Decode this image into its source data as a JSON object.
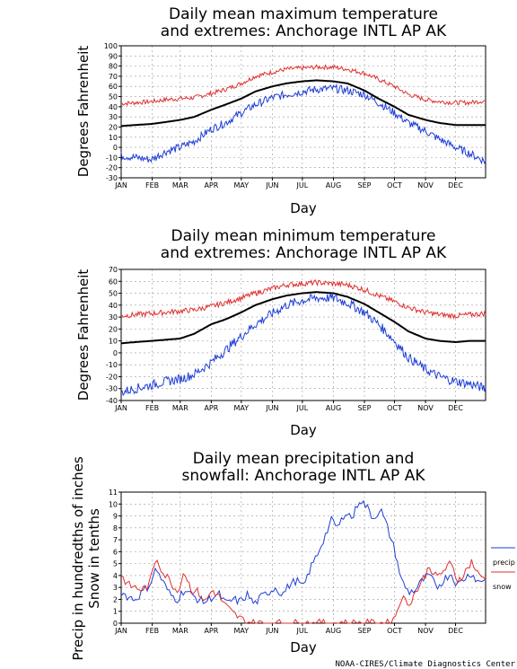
{
  "footer": "NOAA-CIRES/Climate Diagnostics Center",
  "months": [
    "JAN",
    "FEB",
    "MAR",
    "APR",
    "MAY",
    "JUN",
    "JUL",
    "AUG",
    "SEP",
    "OCT",
    "NOV",
    "DEC"
  ],
  "colors": {
    "record": "#e03030",
    "mean": "#000000",
    "low": "#1f3fd6",
    "precip": "#1f3fd6",
    "snow": "#e03030",
    "grid": "#999999"
  },
  "chart_data": [
    {
      "type": "line",
      "title_line1": "Daily mean maximum temperature",
      "title_line2": "and extremes: Anchorage INTL AP AK",
      "xlabel": "Day",
      "ylabel": "Degrees Fahrenheit",
      "ylim": [
        -30,
        100
      ],
      "yticks": [
        -30,
        -20,
        -10,
        0,
        10,
        20,
        30,
        40,
        50,
        60,
        70,
        80,
        90,
        100
      ],
      "grid": true,
      "series": [
        {
          "role": "record",
          "x": [
            1,
            15,
            31,
            46,
            60,
            74,
            91,
            105,
            121,
            135,
            152,
            166,
            182,
            196,
            213,
            227,
            244,
            258,
            274,
            288,
            305,
            319,
            335,
            349,
            365
          ],
          "values": [
            43,
            44,
            45,
            47,
            48,
            49,
            53,
            57,
            63,
            70,
            74,
            77,
            78,
            79,
            79,
            77,
            73,
            67,
            60,
            52,
            47,
            45,
            44,
            44,
            46
          ]
        },
        {
          "role": "mean",
          "x": [
            1,
            15,
            31,
            46,
            60,
            74,
            91,
            105,
            121,
            135,
            152,
            166,
            182,
            196,
            213,
            227,
            244,
            258,
            274,
            288,
            305,
            319,
            335,
            349,
            365
          ],
          "values": [
            21,
            22,
            23,
            25,
            27,
            30,
            37,
            42,
            48,
            55,
            60,
            63,
            65,
            66,
            65,
            63,
            56,
            48,
            40,
            32,
            27,
            24,
            22,
            22,
            22
          ]
        },
        {
          "role": "low",
          "x": [
            1,
            15,
            31,
            46,
            60,
            74,
            91,
            105,
            121,
            135,
            152,
            166,
            182,
            196,
            213,
            227,
            244,
            258,
            274,
            288,
            305,
            319,
            335,
            349,
            365
          ],
          "values": [
            -8,
            -10,
            -12,
            -4,
            0,
            6,
            18,
            24,
            34,
            42,
            49,
            52,
            55,
            57,
            58,
            56,
            52,
            44,
            34,
            24,
            16,
            8,
            0,
            -6,
            -14
          ]
        }
      ]
    },
    {
      "type": "line",
      "title_line1": "Daily mean minimum temperature",
      "title_line2": "and extremes: Anchorage INTL AP AK",
      "xlabel": "Day",
      "ylabel": "Degrees Fahrenheit",
      "ylim": [
        -40,
        70
      ],
      "yticks": [
        -40,
        -30,
        -20,
        -10,
        0,
        10,
        20,
        30,
        40,
        50,
        60,
        70
      ],
      "grid": true,
      "series": [
        {
          "role": "record",
          "x": [
            1,
            15,
            31,
            46,
            60,
            74,
            91,
            105,
            121,
            135,
            152,
            166,
            182,
            196,
            213,
            227,
            244,
            258,
            274,
            288,
            305,
            319,
            335,
            349,
            365
          ],
          "values": [
            31,
            32,
            33,
            34,
            35,
            36,
            39,
            42,
            46,
            50,
            54,
            57,
            58,
            59,
            58,
            57,
            53,
            48,
            43,
            38,
            34,
            32,
            31,
            32,
            33
          ]
        },
        {
          "role": "mean",
          "x": [
            1,
            15,
            31,
            46,
            60,
            74,
            91,
            105,
            121,
            135,
            152,
            166,
            182,
            196,
            213,
            227,
            244,
            258,
            274,
            288,
            305,
            319,
            335,
            349,
            365
          ],
          "values": [
            8,
            9,
            10,
            11,
            12,
            16,
            24,
            28,
            34,
            40,
            45,
            48,
            50,
            51,
            50,
            47,
            41,
            34,
            26,
            18,
            12,
            10,
            9,
            10,
            10
          ]
        },
        {
          "role": "low",
          "x": [
            1,
            15,
            31,
            46,
            60,
            74,
            91,
            105,
            121,
            135,
            152,
            166,
            182,
            196,
            213,
            227,
            244,
            258,
            274,
            288,
            305,
            319,
            335,
            349,
            365
          ],
          "values": [
            -33,
            -30,
            -27,
            -24,
            -22,
            -18,
            -8,
            2,
            14,
            24,
            33,
            40,
            44,
            46,
            46,
            42,
            34,
            24,
            10,
            -4,
            -14,
            -20,
            -24,
            -26,
            -30
          ]
        }
      ]
    },
    {
      "type": "line",
      "title_line1": "Daily mean precipitation and",
      "title_line2": "snowfall: Anchorage INTL AP AK",
      "xlabel": "Day",
      "ylabel_line1": "Precip in hundredths of inches",
      "ylabel_line2": "Snow in tenths",
      "ylim": [
        0,
        11
      ],
      "yticks": [
        0,
        1,
        2,
        3,
        4,
        5,
        6,
        7,
        8,
        9,
        10,
        11
      ],
      "grid": true,
      "legend": "right",
      "series": [
        {
          "name": "precip",
          "role": "precip",
          "x": [
            1,
            8,
            15,
            22,
            29,
            36,
            43,
            50,
            57,
            64,
            71,
            78,
            85,
            92,
            99,
            106,
            113,
            120,
            127,
            134,
            141,
            148,
            155,
            162,
            169,
            176,
            183,
            190,
            197,
            204,
            211,
            218,
            225,
            232,
            239,
            246,
            253,
            260,
            267,
            274,
            281,
            288,
            295,
            302,
            309,
            316,
            323,
            330,
            337,
            344,
            351,
            358,
            365
          ],
          "values": [
            2.6,
            2.2,
            2.0,
            2.6,
            3.2,
            4.6,
            3.4,
            2.4,
            2.0,
            2.8,
            2.4,
            2.0,
            1.8,
            2.2,
            2.4,
            1.6,
            2.0,
            1.8,
            2.4,
            1.6,
            2.2,
            2.6,
            3.0,
            2.4,
            3.2,
            3.6,
            3.0,
            4.6,
            5.8,
            7.2,
            8.6,
            8.0,
            9.4,
            8.8,
            10.4,
            9.8,
            8.8,
            9.6,
            8.0,
            6.2,
            3.6,
            2.6,
            2.8,
            3.6,
            4.0,
            3.0,
            3.6,
            4.2,
            3.2,
            3.8,
            4.2,
            3.4,
            3.8
          ]
        },
        {
          "name": "snow",
          "role": "snow",
          "x": [
            1,
            8,
            15,
            22,
            29,
            36,
            43,
            50,
            57,
            64,
            71,
            78,
            85,
            92,
            99,
            106,
            113,
            120,
            127,
            134,
            141,
            148,
            155,
            162,
            169,
            176,
            183,
            190,
            197,
            204,
            211,
            218,
            225,
            232,
            239,
            246,
            253,
            260,
            267,
            274,
            281,
            288,
            295,
            302,
            309,
            316,
            323,
            330,
            337,
            344,
            351,
            358,
            365
          ],
          "values": [
            4.0,
            3.2,
            3.0,
            2.8,
            3.2,
            5.6,
            4.2,
            3.6,
            2.6,
            4.4,
            2.8,
            2.6,
            1.8,
            2.8,
            2.2,
            1.4,
            0.8,
            0.4,
            0.1,
            0,
            0,
            0,
            0,
            0,
            0,
            0,
            0,
            0,
            0,
            0,
            0,
            0,
            0,
            0,
            0,
            0,
            0,
            0,
            0,
            0.4,
            2.2,
            1.6,
            2.6,
            3.6,
            4.8,
            3.8,
            4.4,
            5.0,
            3.6,
            4.2,
            5.2,
            4.0,
            3.8
          ]
        }
      ]
    }
  ]
}
